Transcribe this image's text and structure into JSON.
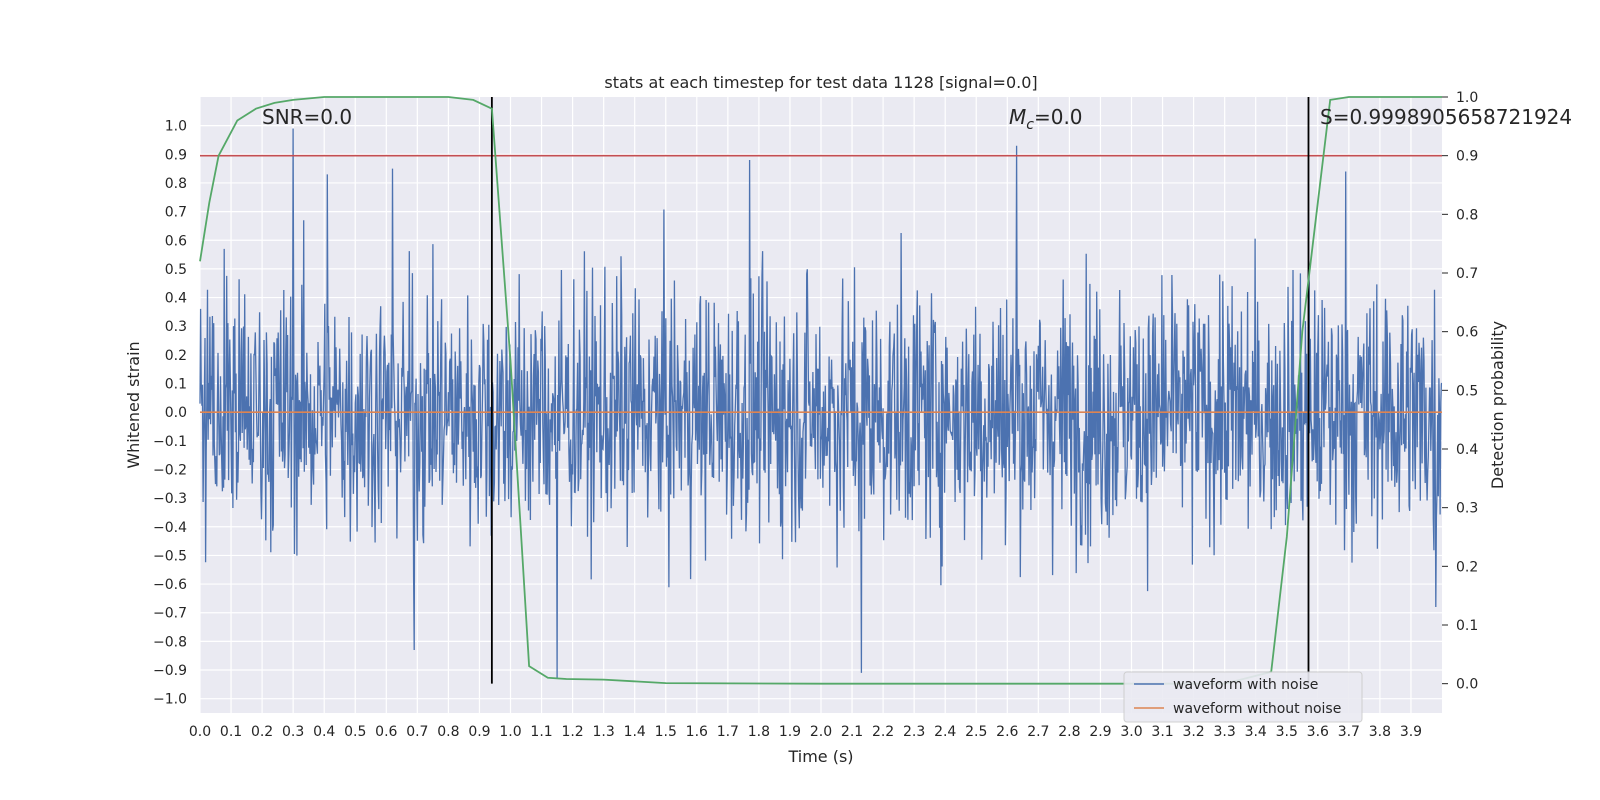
{
  "chart_data": {
    "type": "line",
    "title": "stats at each timestep for test data 1128 [signal=0.0]",
    "xlabel": "Time (s)",
    "ylabel": "Whitened strain",
    "y2label": "Detection probability",
    "xlim": [
      0.0,
      4.0
    ],
    "ylim": [
      -1.05,
      1.1
    ],
    "y2lim": [
      -0.05,
      1.0
    ],
    "xticks": [
      "0.0",
      "0.1",
      "0.2",
      "0.3",
      "0.4",
      "0.5",
      "0.6",
      "0.7",
      "0.8",
      "0.9",
      "1.0",
      "1.1",
      "1.2",
      "1.3",
      "1.4",
      "1.5",
      "1.6",
      "1.7",
      "1.8",
      "1.9",
      "2.0",
      "2.1",
      "2.2",
      "2.3",
      "2.4",
      "2.5",
      "2.6",
      "2.7",
      "2.8",
      "2.9",
      "3.0",
      "3.1",
      "3.2",
      "3.3",
      "3.4",
      "3.5",
      "3.6",
      "3.7",
      "3.8",
      "3.9"
    ],
    "yticks": [
      "1.0",
      "0.9",
      "0.8",
      "0.7",
      "0.6",
      "0.5",
      "0.4",
      "0.3",
      "0.2",
      "0.1",
      "0.0",
      "−0.1",
      "−0.2",
      "−0.3",
      "−0.4",
      "−0.5",
      "−0.6",
      "−0.7",
      "−0.8",
      "−0.9",
      "−1.0"
    ],
    "y2ticks": [
      "1.0",
      "0.9",
      "0.8",
      "0.7",
      "0.6",
      "0.5",
      "0.4",
      "0.3",
      "0.2",
      "0.1",
      "0.0"
    ],
    "annotations": {
      "snr": "SNR=0.0",
      "mc_symbol": "M",
      "mc_sub": "c",
      "mc_value": "=0.0",
      "s": "S=0.9998905658721924"
    },
    "threshold_line": {
      "axis": "y2",
      "value": 0.9,
      "color": "#c44e52"
    },
    "vertical_lines": [
      0.94,
      3.57
    ],
    "series": [
      {
        "name": "waveform with noise",
        "color": "#4c72b0",
        "kind": "noise",
        "sample_rate": 500,
        "envelope_rms": 0.22,
        "peaks": [
          {
            "t": 0.3,
            "v": 0.99
          },
          {
            "t": 0.41,
            "v": 0.83
          },
          {
            "t": 0.62,
            "v": 0.85
          },
          {
            "t": 1.77,
            "v": 0.88
          },
          {
            "t": 2.63,
            "v": 0.93
          },
          {
            "t": 3.69,
            "v": 0.84
          },
          {
            "t": 1.15,
            "v": -0.93
          },
          {
            "t": 2.13,
            "v": -0.91
          },
          {
            "t": 0.69,
            "v": -0.83
          },
          {
            "t": 3.98,
            "v": -0.68
          }
        ]
      },
      {
        "name": "waveform without noise",
        "color": "#dd8452",
        "constant": 0.0
      },
      {
        "name": "Detection probability",
        "color": "#55a868",
        "axis": "y2",
        "x": [
          0.0,
          0.03,
          0.06,
          0.12,
          0.18,
          0.24,
          0.3,
          0.4,
          0.5,
          0.6,
          0.7,
          0.8,
          0.88,
          0.94,
          1.0,
          1.06,
          1.12,
          1.18,
          1.3,
          1.5,
          2.0,
          2.5,
          3.0,
          3.3,
          3.45,
          3.5,
          3.55,
          3.6,
          3.64,
          3.7,
          3.8,
          3.9,
          4.0
        ],
        "y": [
          0.72,
          0.82,
          0.9,
          0.96,
          0.98,
          0.99,
          0.995,
          1.0,
          1.0,
          1.0,
          1.0,
          1.0,
          0.995,
          0.98,
          0.55,
          0.03,
          0.01,
          0.008,
          0.007,
          0.001,
          0.0,
          0.0,
          0.0,
          0.0,
          0.02,
          0.25,
          0.6,
          0.82,
          0.995,
          1.0,
          1.0,
          1.0,
          1.0
        ]
      }
    ],
    "legend": {
      "position": "lower-right",
      "entries": [
        "waveform with noise",
        "waveform without noise"
      ]
    }
  }
}
